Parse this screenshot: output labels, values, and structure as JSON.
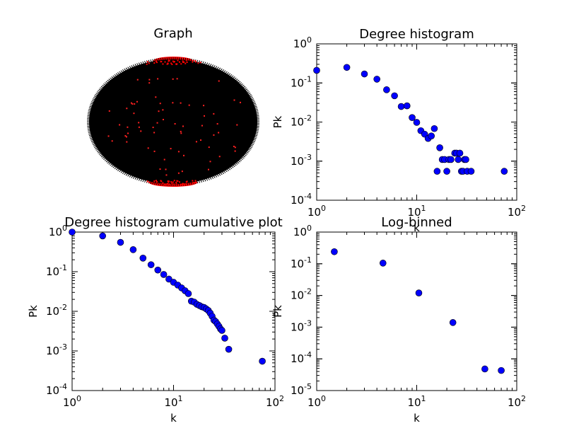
{
  "graph_panel": {
    "title": "Graph"
  },
  "chart_data": [
    {
      "type": "scatter",
      "title": "Degree histogram",
      "xlabel": "k",
      "ylabel": "Pk",
      "xscale": "log",
      "yscale": "log",
      "xlim": [
        1,
        100
      ],
      "ylim": [
        0.0001,
        1
      ],
      "xticks": {
        "base": "10",
        "exponents": [
          "0",
          "1",
          "2"
        ]
      },
      "yticks": {
        "base": "10",
        "exponents": [
          "-4",
          "-3",
          "-2",
          "-1",
          "0"
        ]
      },
      "marker_color": "#0000ff",
      "points": [
        [
          1,
          0.21
        ],
        [
          2,
          0.25
        ],
        [
          3,
          0.17
        ],
        [
          4,
          0.125
        ],
        [
          5,
          0.067
        ],
        [
          6,
          0.047
        ],
        [
          7,
          0.025
        ],
        [
          8,
          0.026
        ],
        [
          9,
          0.013
        ],
        [
          10,
          0.0098
        ],
        [
          11,
          0.006
        ],
        [
          12,
          0.0049
        ],
        [
          13,
          0.0038
        ],
        [
          14,
          0.0044
        ],
        [
          15,
          0.0068
        ],
        [
          16,
          0.00055
        ],
        [
          17,
          0.0022
        ],
        [
          18,
          0.0011
        ],
        [
          19,
          0.0011
        ],
        [
          20,
          0.00055
        ],
        [
          21,
          0.0011
        ],
        [
          22,
          0.0011
        ],
        [
          24,
          0.0016
        ],
        [
          25,
          0.0016
        ],
        [
          26,
          0.0011
        ],
        [
          27,
          0.0016
        ],
        [
          28,
          0.00055
        ],
        [
          29,
          0.00055
        ],
        [
          30,
          0.0011
        ],
        [
          31,
          0.0011
        ],
        [
          32,
          0.00055
        ],
        [
          35,
          0.00055
        ],
        [
          75,
          0.00055
        ]
      ]
    },
    {
      "type": "scatter",
      "title": "Degree histogram cumulative plot",
      "xlabel": "k",
      "ylabel": "Pk",
      "xscale": "log",
      "yscale": "log",
      "xlim": [
        1,
        100
      ],
      "ylim": [
        0.0001,
        1
      ],
      "xticks": {
        "base": "10",
        "exponents": [
          "0",
          "1",
          "2"
        ]
      },
      "yticks": {
        "base": "10",
        "exponents": [
          "-4",
          "-3",
          "-2",
          "-1",
          "0"
        ]
      },
      "marker_color": "#0000ff",
      "points": [
        [
          1,
          1.0
        ],
        [
          2,
          0.8
        ],
        [
          3,
          0.55
        ],
        [
          4,
          0.36
        ],
        [
          5,
          0.22
        ],
        [
          6,
          0.15
        ],
        [
          7,
          0.11
        ],
        [
          8,
          0.085
        ],
        [
          9,
          0.065
        ],
        [
          10,
          0.054
        ],
        [
          11,
          0.046
        ],
        [
          12,
          0.039
        ],
        [
          13,
          0.033
        ],
        [
          14,
          0.028
        ],
        [
          15,
          0.018
        ],
        [
          16,
          0.017
        ],
        [
          17,
          0.015
        ],
        [
          18,
          0.014
        ],
        [
          19,
          0.013
        ],
        [
          20,
          0.0125
        ],
        [
          21,
          0.0115
        ],
        [
          22,
          0.0105
        ],
        [
          23,
          0.009
        ],
        [
          24,
          0.0075
        ],
        [
          25,
          0.006
        ],
        [
          26,
          0.0055
        ],
        [
          27,
          0.0048
        ],
        [
          28,
          0.0042
        ],
        [
          29,
          0.0036
        ],
        [
          30,
          0.0033
        ],
        [
          32,
          0.0021
        ],
        [
          35,
          0.0011
        ],
        [
          75,
          0.00055
        ]
      ]
    },
    {
      "type": "scatter",
      "title": "Log-binned",
      "xlabel": "k",
      "ylabel": "Pk",
      "xscale": "log",
      "yscale": "log",
      "xlim": [
        1,
        100
      ],
      "ylim": [
        1e-05,
        1
      ],
      "xticks": {
        "base": "10",
        "exponents": [
          "0",
          "1",
          "2"
        ]
      },
      "yticks": {
        "base": "10",
        "exponents": [
          "-5",
          "-4",
          "-3",
          "-2",
          "-1",
          "0"
        ]
      },
      "marker_color": "#0000ff",
      "points": [
        [
          1.5,
          0.24
        ],
        [
          4.6,
          0.105
        ],
        [
          10.5,
          0.012
        ],
        [
          23,
          0.0014
        ],
        [
          48,
          4.8e-05
        ],
        [
          70,
          4.3e-05
        ]
      ]
    }
  ]
}
